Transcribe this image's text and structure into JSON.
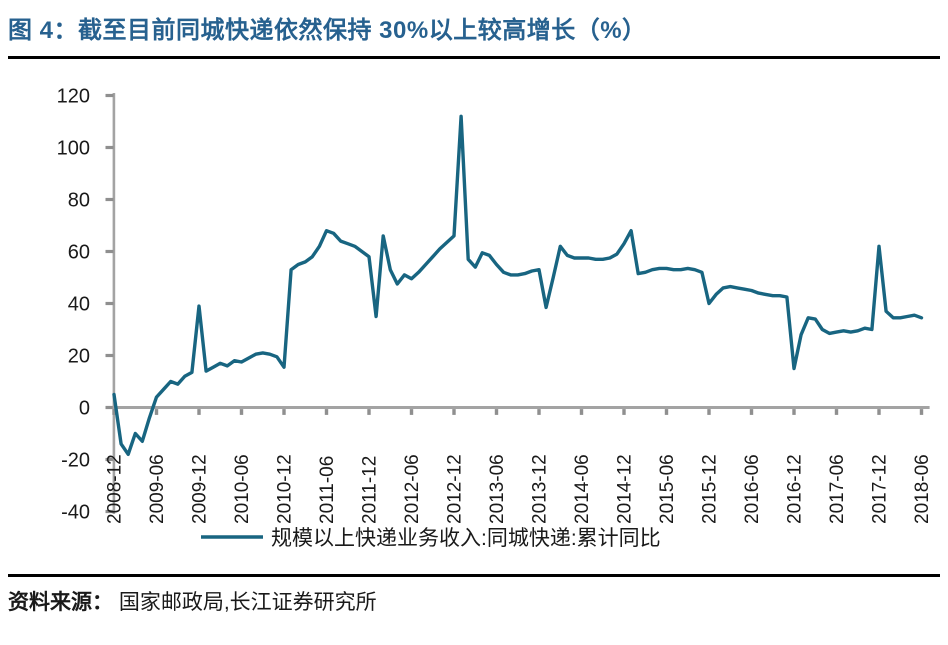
{
  "figure": {
    "title": "图 4：截至目前同城快递依然保持 30%以上较高增长（%）",
    "source_label": "资料来源：",
    "source_text": " 国家邮政局,长江证券研究所"
  },
  "chart_data": {
    "type": "line",
    "title": "截至目前同城快递依然保持 30%以上较高增长（%）",
    "legend": "规模以上快递业务收入:同城快递:累计同比",
    "legend_position": "bottom",
    "xlabel": "",
    "ylabel": "",
    "grid": false,
    "ylim": [
      -40,
      120
    ],
    "y_ticks": [
      120,
      100,
      80,
      60,
      40,
      20,
      0,
      -20,
      -40
    ],
    "x_tick_labels": [
      "2008-12",
      "2009-06",
      "2009-12",
      "2010-06",
      "2010-12",
      "2011-06",
      "2011-12",
      "2012-06",
      "2012-12",
      "2013-06",
      "2013-12",
      "2014-06",
      "2014-12",
      "2015-06",
      "2015-12",
      "2016-06",
      "2016-12",
      "2017-06",
      "2017-12",
      "2018-06"
    ],
    "x_start": "2008-12",
    "x_end": "2018-06",
    "x_frequency": "monthly",
    "values": [
      5,
      -14,
      -18,
      -10,
      -13,
      -4,
      4,
      7,
      10,
      9,
      12,
      13.5,
      39,
      14,
      15.5,
      17,
      16,
      18,
      17.5,
      19,
      20.5,
      21,
      20.5,
      19.5,
      15.5,
      53,
      55,
      56,
      58,
      62,
      68,
      67,
      64,
      63,
      62,
      60,
      58,
      35,
      66,
      53,
      47.5,
      51,
      49.5,
      52,
      55,
      58,
      61,
      63.5,
      66,
      112,
      57,
      54,
      59.5,
      58.5,
      55,
      52,
      51,
      51,
      51.5,
      52.5,
      53,
      38.5,
      50,
      62,
      58.5,
      57.5,
      57.5,
      57.5,
      57,
      57,
      57.5,
      59,
      63,
      68,
      51.5,
      52,
      53,
      53.5,
      53.5,
      53,
      53,
      53.5,
      53,
      52,
      40,
      43.5,
      46,
      46.5,
      46,
      45.5,
      45,
      44,
      43.5,
      43,
      43,
      42.5,
      15,
      28,
      34.5,
      34,
      30,
      28.5,
      29,
      29.5,
      29,
      29.5,
      30.5,
      30,
      62,
      37,
      34.5,
      34.5,
      35,
      35.5,
      34.5
    ],
    "line_color": "#186581",
    "axis_color": "#a3a3a3",
    "tick_color": "#8f8f8f",
    "title_color": "#27618f"
  }
}
